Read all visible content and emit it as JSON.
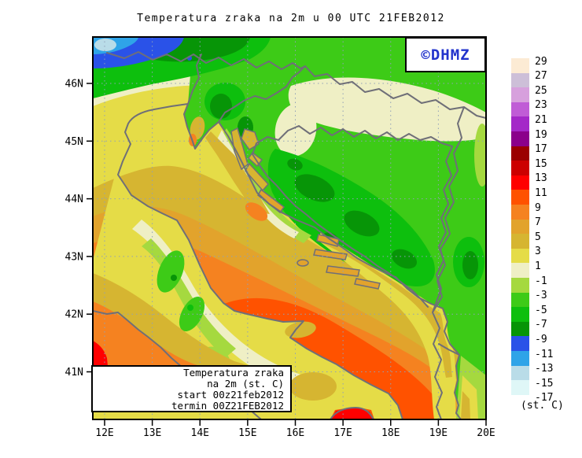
{
  "title": "Temperatura zraka na 2m u 00 UTC 21FEB2012",
  "watermark": {
    "text": "©DHMZ",
    "color": "#2233CC"
  },
  "axes": {
    "x_labels": [
      "12E",
      "13E",
      "14E",
      "15E",
      "16E",
      "17E",
      "18E",
      "19E",
      "20E"
    ],
    "y_labels": [
      "46N",
      "45N",
      "44N",
      "43N",
      "42N",
      "41N"
    ]
  },
  "colorbar": {
    "labels": [
      "29",
      "27",
      "25",
      "23",
      "21",
      "19",
      "17",
      "15",
      "13",
      "11",
      "9",
      "7",
      "5",
      "3",
      "1",
      "-1",
      "-3",
      "-5",
      "-7",
      "-9",
      "-11",
      "-13",
      "-15",
      "-17"
    ],
    "colors": [
      "#FCEBD4",
      "#CDBFD8",
      "#D7A0DD",
      "#C05CD6",
      "#A428C8",
      "#8B008B",
      "#9B0000",
      "#CC0000",
      "#FF0000",
      "#FF5200",
      "#F58220",
      "#E2A32C",
      "#D6B531",
      "#E5DC47",
      "#EFEFC5",
      "#A5D93F",
      "#3DCB17",
      "#0DBF0D",
      "#079507",
      "#2A52E8",
      "#2FA4E8",
      "#B9DCE8",
      "#DFF7F7",
      "#FFFFFF"
    ],
    "unit_label": "(st. C)"
  },
  "info_box": {
    "lines": [
      "Temperatura zraka",
      "na 2m (st. C)",
      "start 00z21feb2012",
      "termin 00Z21FEB2012"
    ]
  },
  "style_colors": {
    "coast_border": "#6F6F78",
    "gridline": "#90A0B8",
    "frame": "#000000"
  }
}
